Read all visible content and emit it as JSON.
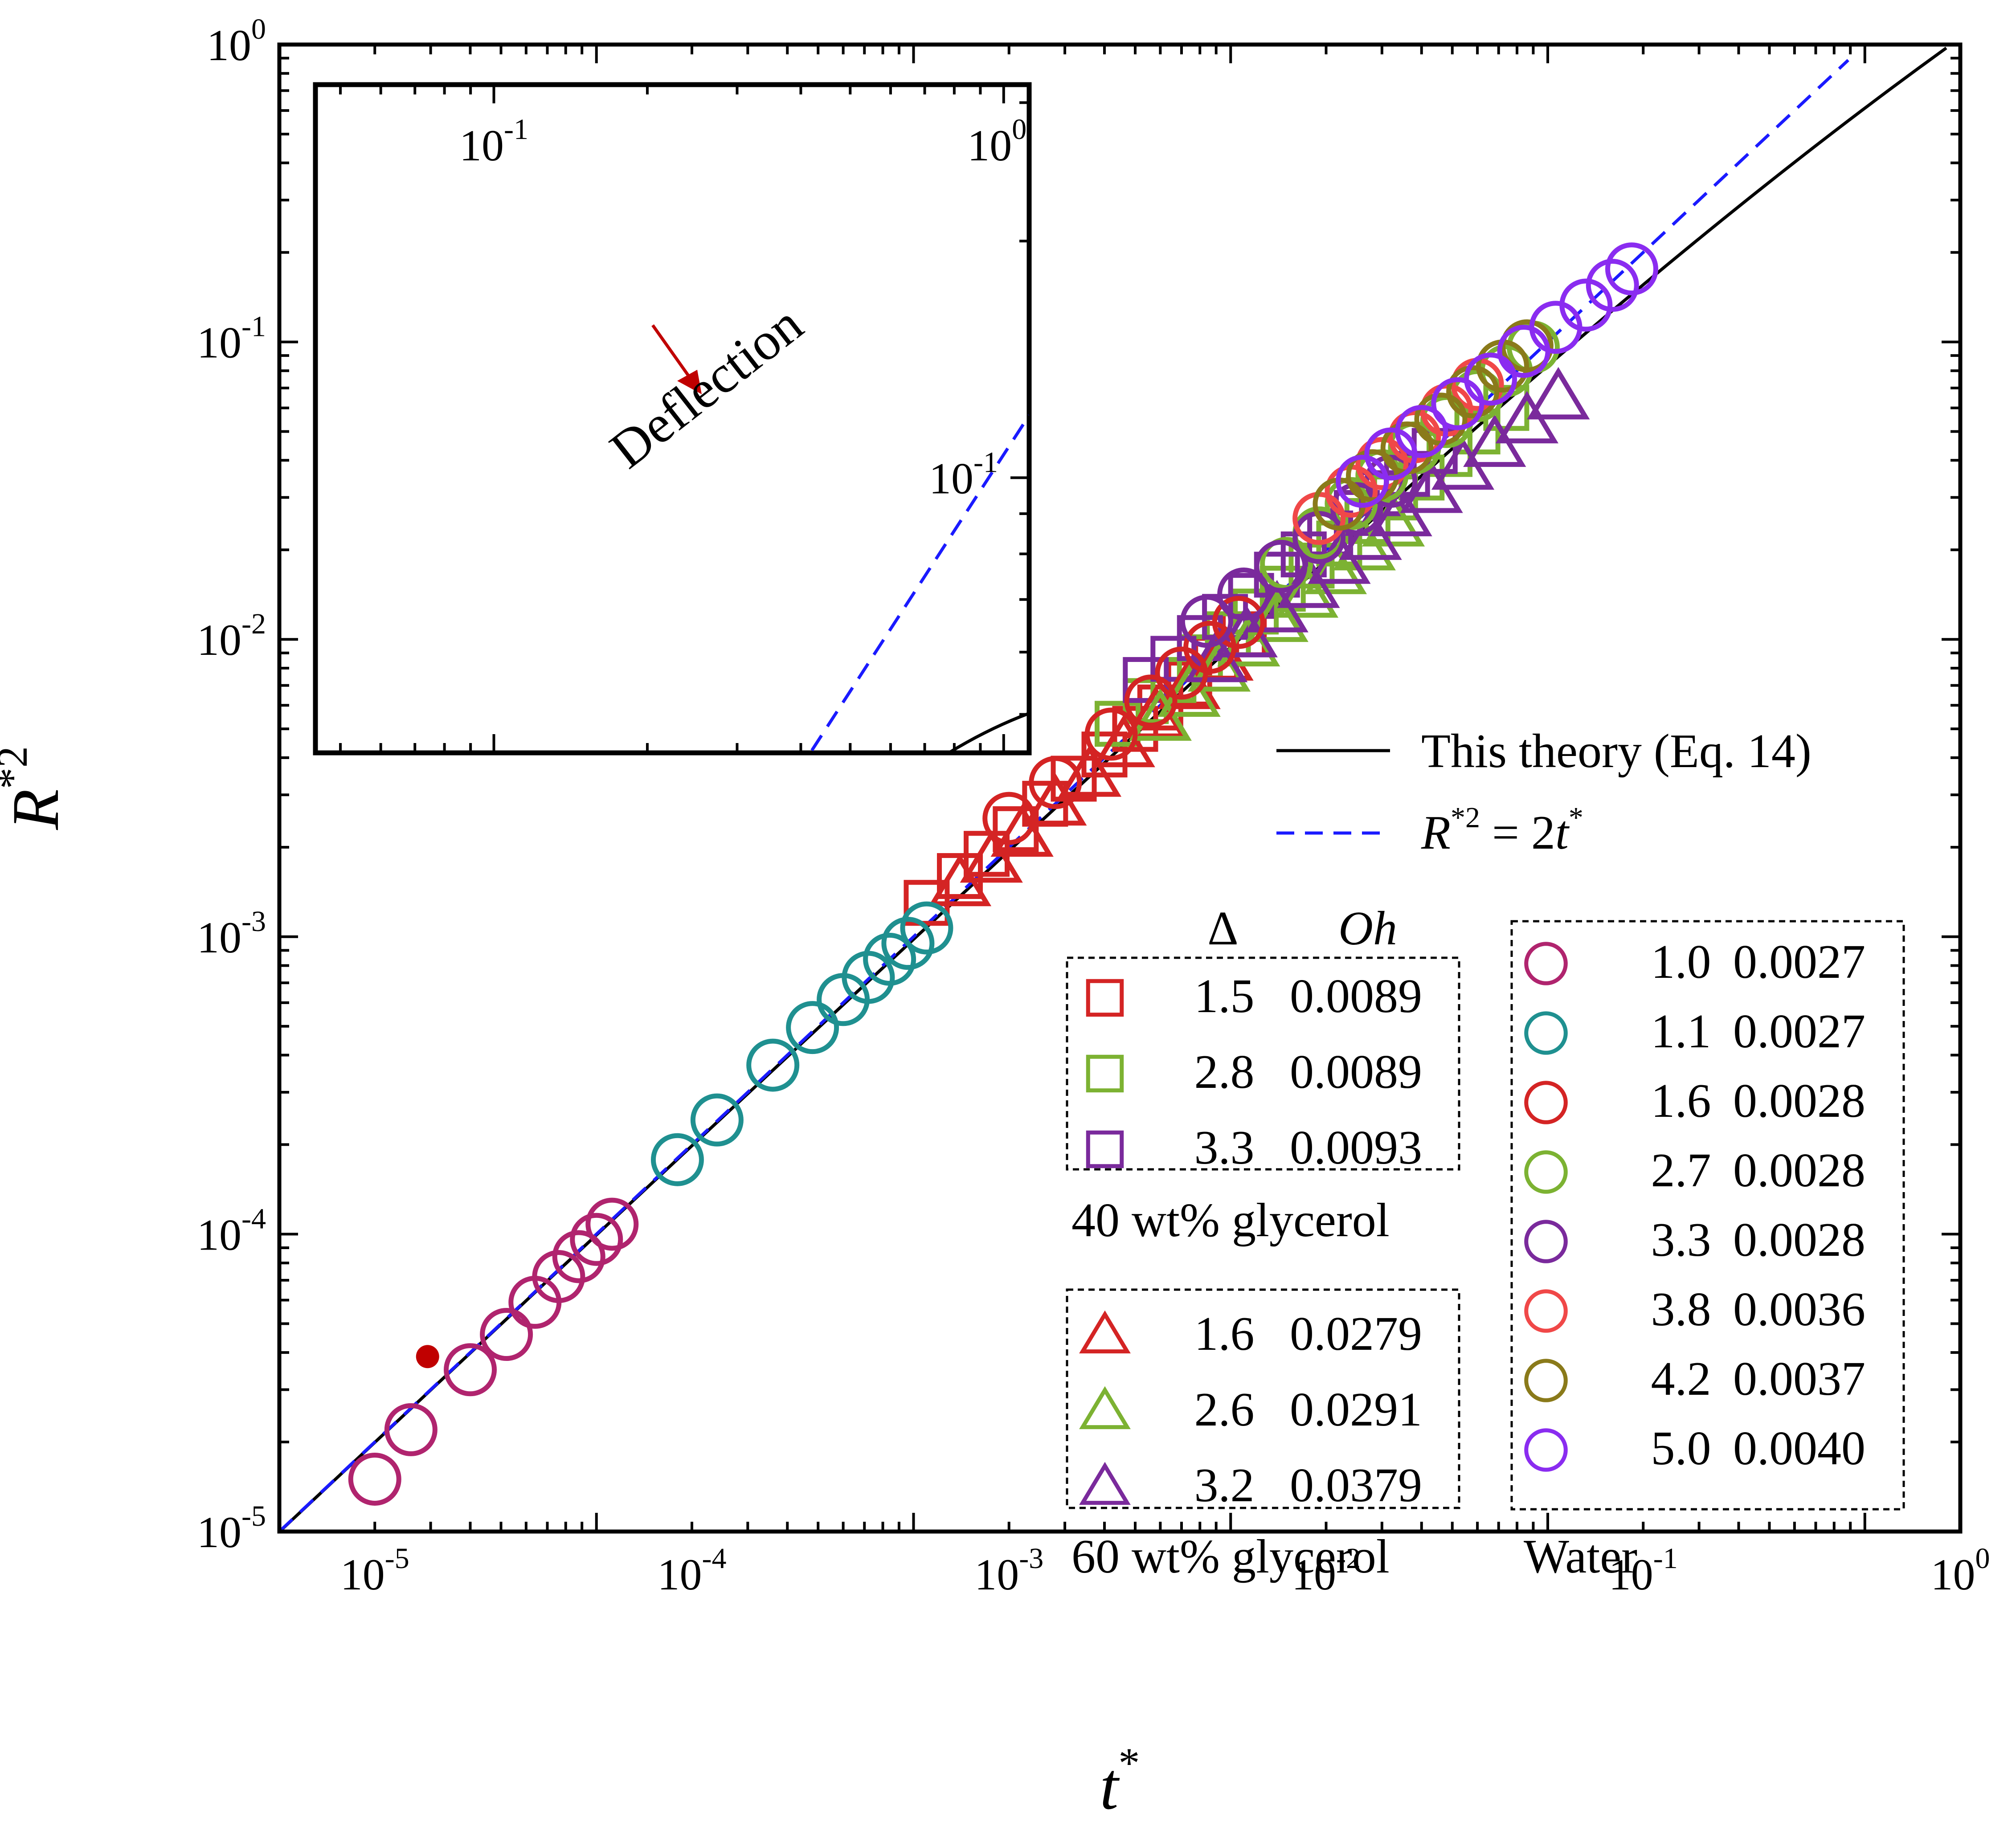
{
  "chart_data": {
    "type": "scatter",
    "xscale": "log",
    "yscale": "log",
    "xlim": [
      5e-06,
      1
    ],
    "ylim": [
      1e-05,
      1
    ],
    "xlabel": {
      "base": "t",
      "sup": "*"
    },
    "ylabel": {
      "base": "R",
      "sup": "*2"
    },
    "x_ticks": [
      {
        "base": "10",
        "exp": "-5"
      },
      {
        "base": "10",
        "exp": "-4"
      },
      {
        "base": "10",
        "exp": "-3"
      },
      {
        "base": "10",
        "exp": "-2"
      },
      {
        "base": "10",
        "exp": "-1"
      },
      {
        "base": "10",
        "exp": "0"
      }
    ],
    "y_ticks": [
      {
        "base": "10",
        "exp": "-5"
      },
      {
        "base": "10",
        "exp": "-4"
      },
      {
        "base": "10",
        "exp": "-3"
      },
      {
        "base": "10",
        "exp": "-2"
      },
      {
        "base": "10",
        "exp": "-1"
      },
      {
        "base": "10",
        "exp": "0"
      }
    ],
    "lines": [
      {
        "name": "This theory (Eq. 14)",
        "style": "solid",
        "color": "#000000"
      },
      {
        "name": "R*2 = 2t*",
        "style": "dashed",
        "color": "#1a1aff",
        "label": {
          "base": "R",
          "sup1": "*2",
          "mid": " = 2",
          "t": "t",
          "sup2": "*"
        }
      }
    ],
    "legend_header": {
      "delta": "Δ",
      "oh": "Oh"
    },
    "groups": [
      {
        "label": "40 wt% glycerol",
        "marker": "square",
        "series": [
          {
            "delta": "1.5",
            "oh": "0.0089",
            "color": "#d42424",
            "x": [
              0.00055,
              0.0007,
              0.00085,
              0.00105,
              0.0013,
              0.0016,
              0.002,
              0.0025,
              0.003,
              0.0037,
              0.0045,
              0.0055
            ],
            "y": [
              0.0013,
              0.0016,
              0.0019,
              0.0023,
              0.0028,
              0.0034,
              0.0041,
              0.005,
              0.0059,
              0.0071,
              0.0086,
              0.0104
            ]
          },
          {
            "delta": "2.8",
            "oh": "0.0089",
            "color": "#7cb232",
            "x": [
              0.0022,
              0.0027,
              0.0033,
              0.004,
              0.0049,
              0.006,
              0.0073,
              0.009,
              0.011,
              0.0135,
              0.0165,
              0.02,
              0.0245,
              0.03,
              0.037
            ],
            "y": [
              0.0052,
              0.0062,
              0.0073,
              0.0087,
              0.0104,
              0.0124,
              0.0148,
              0.0177,
              0.021,
              0.025,
              0.03,
              0.035,
              0.042,
              0.05,
              0.06
            ]
          },
          {
            "delta": "3.3",
            "oh": "0.0093",
            "color": "#7a2a9c",
            "x": [
              0.0027,
              0.0033,
              0.004,
              0.0048,
              0.0058,
              0.007,
              0.0085,
              0.0103,
              0.0125,
              0.015,
              0.018,
              0.022
            ],
            "y": [
              0.0073,
              0.0086,
              0.0101,
              0.0119,
              0.014,
              0.0165,
              0.0193,
              0.0227,
              0.0266,
              0.031,
              0.036,
              0.043
            ]
          }
        ]
      },
      {
        "label": "60 wt% glycerol",
        "marker": "triangle",
        "series": [
          {
            "delta": "1.6",
            "oh": "0.0279",
            "color": "#d42424",
            "x": [
              0.0007,
              0.00088,
              0.0011,
              0.0014,
              0.0018,
              0.0023,
              0.0029,
              0.0037,
              0.0047
            ],
            "y": [
              0.0015,
              0.0018,
              0.0022,
              0.0028,
              0.0035,
              0.0044,
              0.0055,
              0.0069,
              0.0086
            ]
          },
          {
            "delta": "2.6",
            "oh": "0.0291",
            "color": "#7cb232",
            "x": [
              0.003,
              0.0037,
              0.0046,
              0.0057,
              0.007,
              0.0087,
              0.0107,
              0.0132,
              0.0163
            ],
            "y": [
              0.0054,
              0.0065,
              0.0079,
              0.0096,
              0.0116,
              0.014,
              0.0168,
              0.0202,
              0.0243
            ]
          },
          {
            "delta": "3.2",
            "oh": "0.0379",
            "color": "#7a2a9c",
            "x": [
              0.0045,
              0.0056,
              0.007,
              0.0088,
              0.011,
              0.0138,
              0.0172,
              0.0215,
              0.027,
              0.034,
              0.043,
              0.054
            ],
            "y": [
              0.0085,
              0.0103,
              0.0125,
              0.0151,
              0.0182,
              0.0219,
              0.0263,
              0.0315,
              0.0377,
              0.045,
              0.054,
              0.065
            ]
          }
        ]
      },
      {
        "label": "Water",
        "marker": "circle",
        "series": [
          {
            "delta": "1.0",
            "oh": "0.0027",
            "color": "#b0246e",
            "x": [
              1e-05,
              1.3e-05,
              2e-05,
              2.6e-05,
              3.2e-05,
              3.8e-05,
              4.4e-05,
              5e-05,
              5.6e-05
            ],
            "y": [
              1.5e-05,
              2.2e-05,
              3.5e-05,
              4.6e-05,
              5.9e-05,
              7.2e-05,
              8.4e-05,
              9.6e-05,
              0.000108
            ]
          },
          {
            "delta": "1.1",
            "oh": "0.0027",
            "color": "#1f9090",
            "x": [
              9e-05,
              0.00012,
              0.00018,
              0.00024,
              0.0003,
              0.00036,
              0.00042,
              0.00048,
              0.00055
            ],
            "y": [
              0.000178,
              0.000242,
              0.00037,
              0.000495,
              0.000615,
              0.00073,
              0.00084,
              0.00095,
              0.00107
            ]
          },
          {
            "delta": "1.6",
            "oh": "0.0028",
            "color": "#d42424",
            "x": [
              0.001,
              0.0014,
              0.0021,
              0.0028,
              0.0035,
              0.0043,
              0.0053
            ],
            "y": [
              0.0025,
              0.0033,
              0.0048,
              0.0062,
              0.0077,
              0.0094,
              0.0114
            ]
          },
          {
            "delta": "2.7",
            "oh": "0.0028",
            "color": "#7cb232",
            "x": [
              0.0075,
              0.0095,
              0.012,
              0.015,
              0.019,
              0.024,
              0.03,
              0.037,
              0.045
            ],
            "y": [
              0.018,
              0.0228,
              0.0286,
              0.0355,
              0.044,
              0.054,
              0.066,
              0.08,
              0.096
            ]
          },
          {
            "delta": "3.3",
            "oh": "0.0028",
            "color": "#7a2a9c",
            "x": [
              0.0042,
              0.0055,
              0.0072,
              0.0095,
              0.0125,
              0.016
            ],
            "y": [
              0.0115,
              0.0142,
              0.0176,
              0.022,
              0.0275,
              0.034
            ]
          },
          {
            "delta": "3.8",
            "oh": "0.0036",
            "color": "#f04848",
            "x": [
              0.0095,
              0.012,
              0.015,
              0.019,
              0.024,
              0.03
            ],
            "y": [
              0.0255,
              0.0315,
              0.039,
              0.048,
              0.059,
              0.072
            ]
          },
          {
            "delta": "4.2",
            "oh": "0.0037",
            "color": "#8a7a1a",
            "x": [
              0.011,
              0.014,
              0.018,
              0.023,
              0.029,
              0.036,
              0.043
            ],
            "y": [
              0.0285,
              0.0355,
              0.044,
              0.055,
              0.068,
              0.083,
              0.097
            ]
          },
          {
            "delta": "5.0",
            "oh": "0.0040",
            "color": "#8a2cf0",
            "x": [
              0.013,
              0.016,
              0.02,
              0.026,
              0.033,
              0.042,
              0.053,
              0.066,
              0.08,
              0.092
            ],
            "y": [
              0.034,
              0.042,
              0.05,
              0.062,
              0.075,
              0.093,
              0.112,
              0.133,
              0.155,
              0.176
            ]
          }
        ]
      }
    ],
    "inset": {
      "x_tick_labels": [
        {
          "base": "10",
          "exp": "-1"
        },
        {
          "base": "10",
          "exp": "0"
        }
      ],
      "y_tick_labels": [
        {
          "base": "10",
          "exp": "-1"
        }
      ],
      "annotation": "Deflection",
      "marker_color": "#c00000"
    }
  }
}
